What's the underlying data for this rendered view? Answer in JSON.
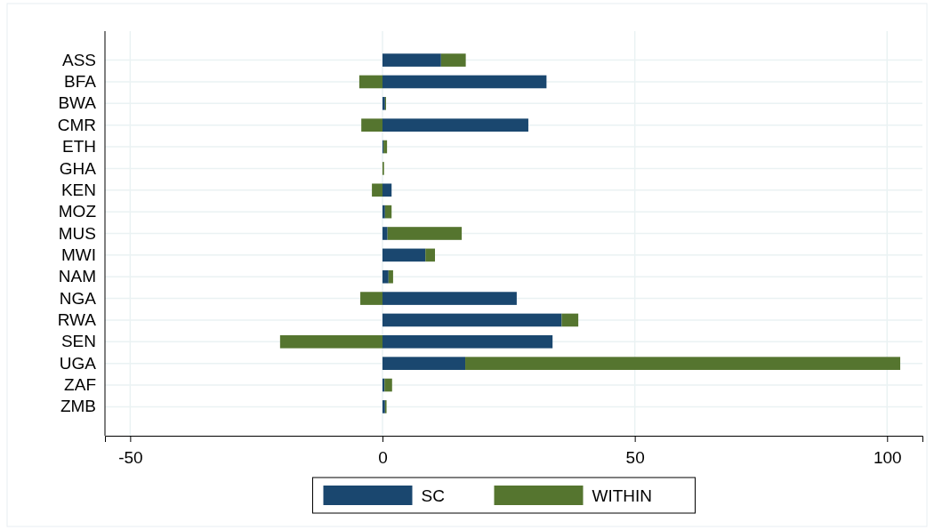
{
  "chart_data": {
    "type": "bar",
    "orientation": "horizontal",
    "stacked": true,
    "categories": [
      "ASS",
      "BFA",
      "BWA",
      "CMR",
      "ETH",
      "GHA",
      "KEN",
      "MOZ",
      "MUS",
      "MWI",
      "NAM",
      "NGA",
      "RWA",
      "SEN",
      "UGA",
      "ZAF",
      "ZMB"
    ],
    "series": [
      {
        "name": "SC",
        "color": "#1a476f",
        "values": [
          11.6,
          32.5,
          0.5,
          28.9,
          0.2,
          0,
          1.8,
          0.5,
          1.0,
          8.5,
          1.2,
          26.6,
          35.5,
          33.7,
          16.4,
          0.4,
          0.5
        ]
      },
      {
        "name": "WITHIN",
        "color": "#55752f",
        "values": [
          4.9,
          -4.6,
          0.2,
          -4.2,
          0.7,
          0.3,
          -2.1,
          1.3,
          14.7,
          1.9,
          0.9,
          -4.4,
          3.3,
          -20.3,
          86.2,
          1.5,
          0.3
        ]
      }
    ],
    "xlim": [
      -55,
      107
    ],
    "xticks": [
      -50,
      0,
      50,
      100
    ],
    "grid": true,
    "legend": "bottom"
  }
}
